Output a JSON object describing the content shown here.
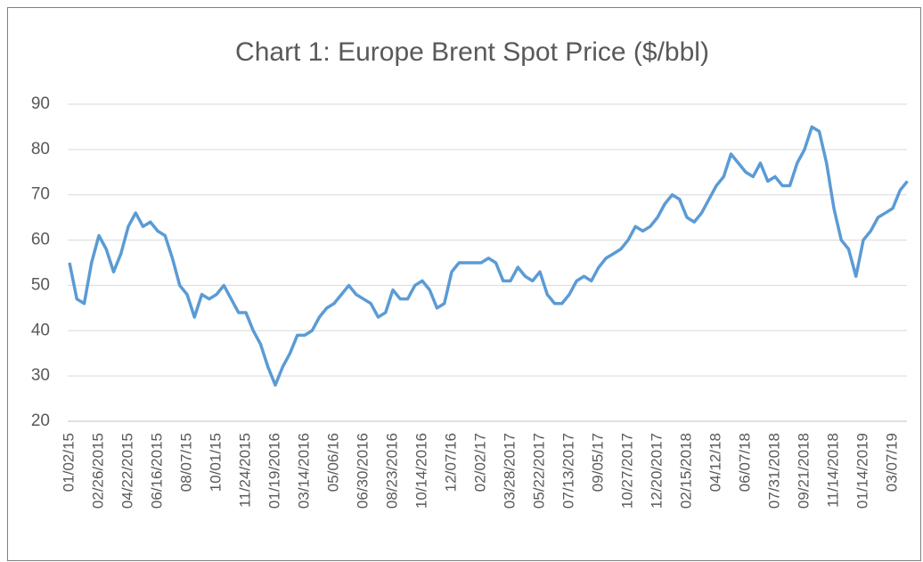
{
  "chart_data": {
    "type": "line",
    "title": "Chart 1: Europe Brent Spot Price ($/bbl)",
    "categories": [
      "01/02/15",
      null,
      null,
      null,
      "02/26/2015",
      null,
      null,
      null,
      "04/22/2015",
      null,
      null,
      null,
      "06/16/2015",
      null,
      null,
      null,
      "08/07/15",
      null,
      null,
      null,
      "10/01/15",
      null,
      null,
      null,
      "11/24/2015",
      null,
      null,
      null,
      "01/19/2016",
      null,
      null,
      null,
      "03/14/2016",
      null,
      null,
      null,
      "05/06/16",
      null,
      null,
      null,
      "06/30/2016",
      null,
      null,
      null,
      "08/23/2016",
      null,
      null,
      null,
      "10/14/2016",
      null,
      null,
      null,
      "12/07/16",
      null,
      null,
      null,
      "02/02/17",
      null,
      null,
      null,
      "03/28/2017",
      null,
      null,
      null,
      "05/22/2017",
      null,
      null,
      null,
      "07/13/2017",
      null,
      null,
      null,
      "09/05/17",
      null,
      null,
      null,
      "10/27/2017",
      null,
      null,
      null,
      "12/20/2017",
      null,
      null,
      null,
      "02/15/2018",
      null,
      null,
      null,
      "04/12/18",
      null,
      null,
      null,
      "06/07/18",
      null,
      null,
      null,
      "07/31/2018",
      null,
      null,
      null,
      "09/21/2018",
      null,
      null,
      null,
      "11/14/2018",
      null,
      null,
      null,
      "01/14/2019",
      null,
      null,
      null,
      "03/07/19",
      null,
      null
    ],
    "series": [
      {
        "name": "Europe Brent Spot Price",
        "color": "#5b9bd5",
        "values": [
          55,
          47,
          46,
          55,
          61,
          58,
          53,
          57,
          63,
          66,
          63,
          64,
          62,
          61,
          56,
          50,
          48,
          43,
          48,
          47,
          48,
          50,
          47,
          44,
          44,
          40,
          37,
          32,
          28,
          32,
          35,
          39,
          39,
          40,
          43,
          45,
          46,
          48,
          50,
          48,
          47,
          46,
          43,
          44,
          49,
          47,
          47,
          50,
          51,
          49,
          45,
          46,
          53,
          55,
          55,
          55,
          55,
          56,
          55,
          51,
          51,
          54,
          52,
          51,
          53,
          48,
          46,
          46,
          48,
          51,
          52,
          51,
          54,
          56,
          57,
          58,
          60,
          63,
          62,
          63,
          65,
          68,
          70,
          69,
          65,
          64,
          66,
          69,
          72,
          74,
          79,
          77,
          75,
          74,
          77,
          73,
          74,
          72,
          72,
          77,
          80,
          85,
          84,
          77,
          67,
          60,
          58,
          52,
          60,
          62,
          65,
          66,
          67,
          71,
          73
        ]
      }
    ],
    "ylim": [
      20,
      90
    ],
    "yticks": [
      20,
      30,
      40,
      50,
      60,
      70,
      80,
      90
    ],
    "grid": true
  }
}
